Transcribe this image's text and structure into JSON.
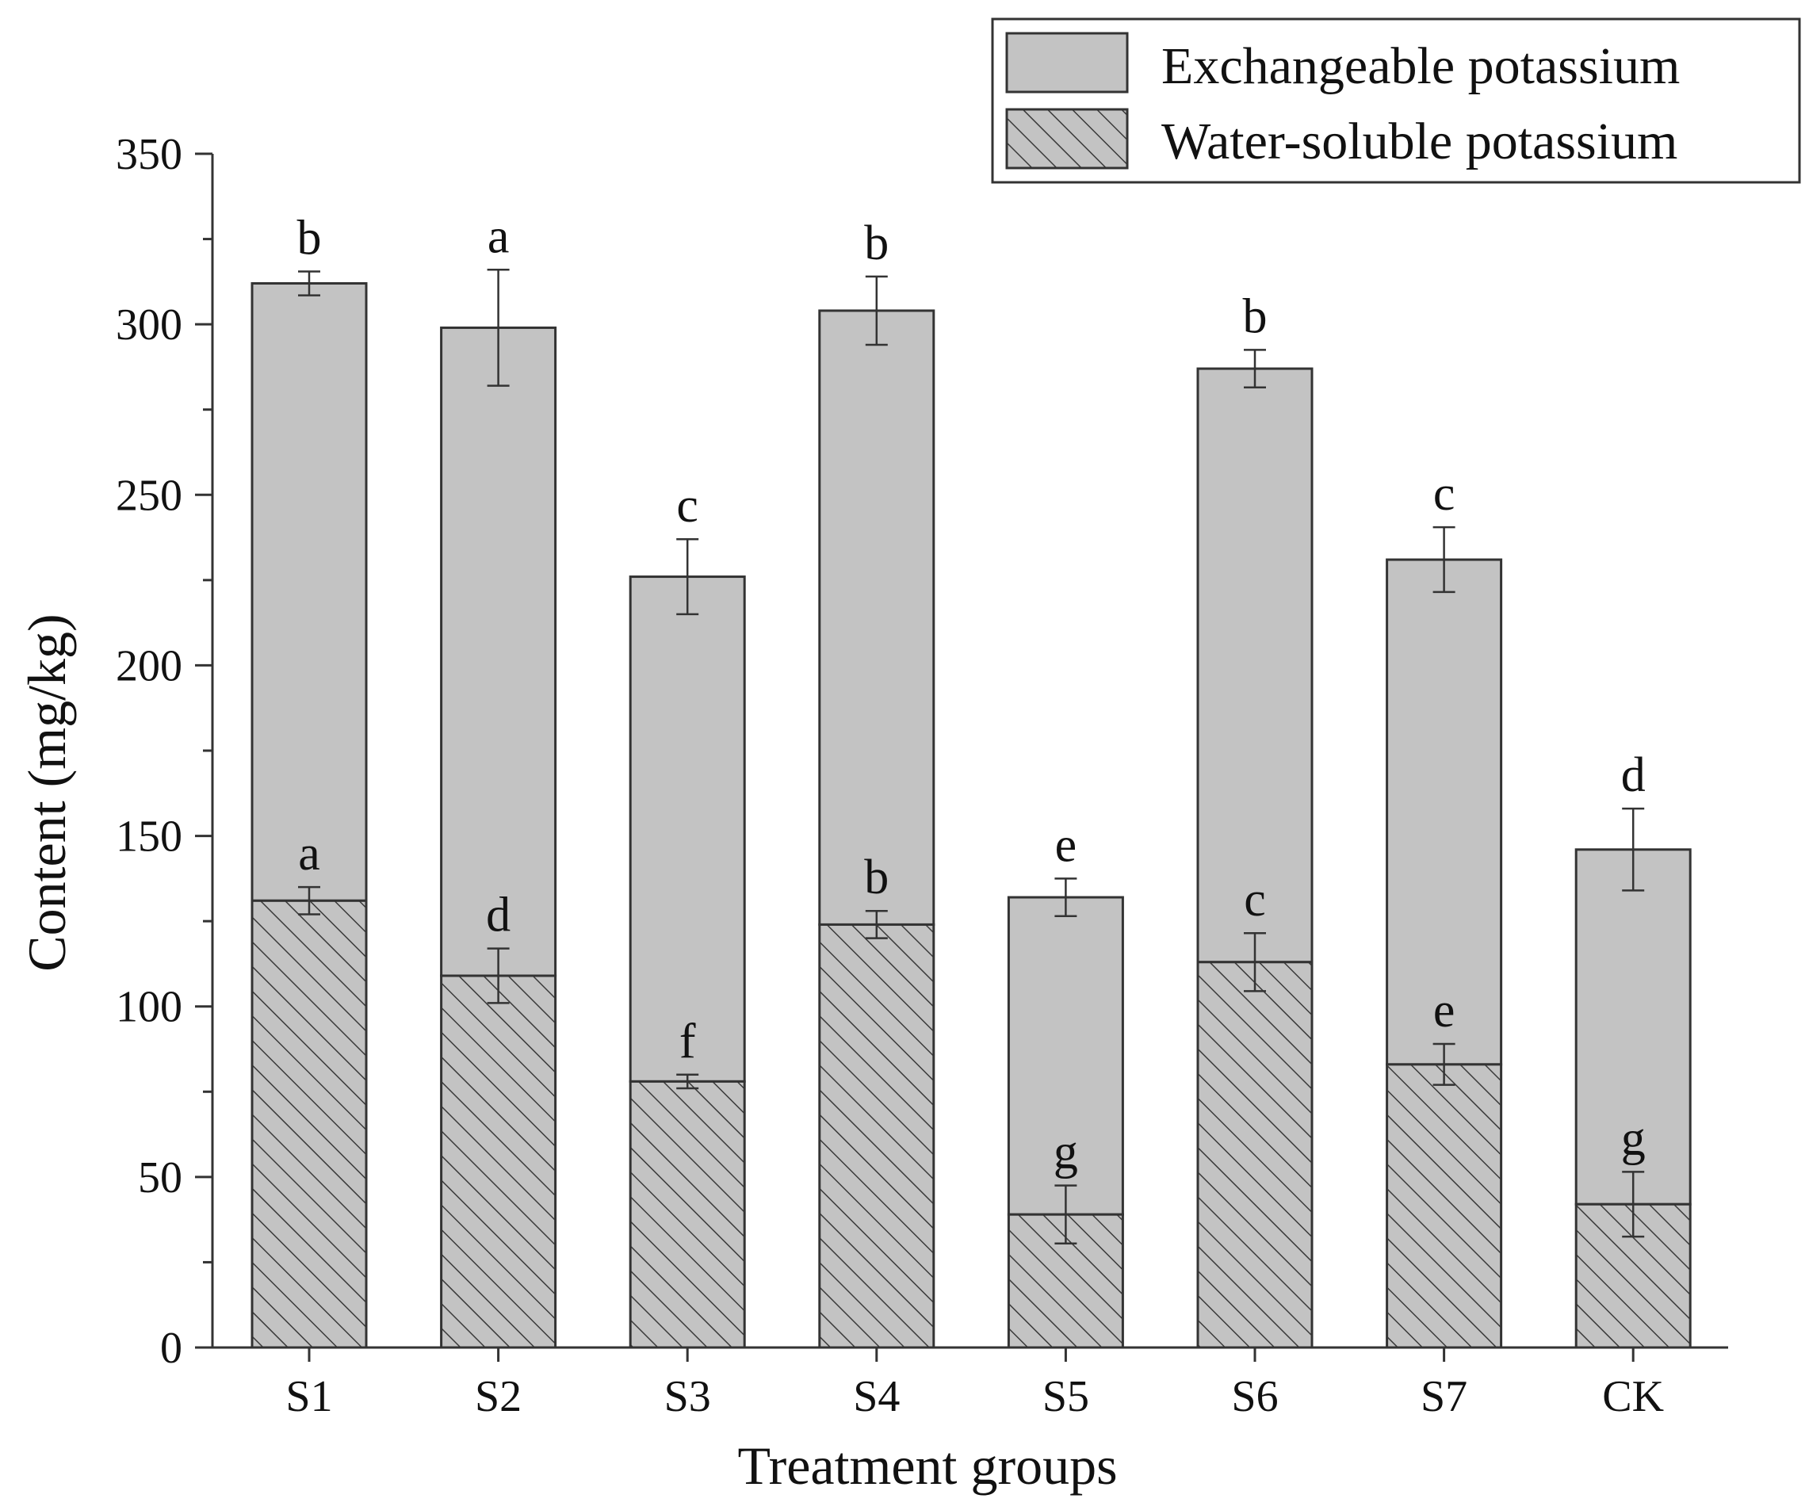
{
  "chart_data": {
    "type": "bar",
    "stacked": true,
    "title": "",
    "xlabel": "Treatment groups",
    "ylabel": "Content (mg/kg)",
    "ylim": [
      0,
      350
    ],
    "yticks": [
      0,
      50,
      100,
      150,
      200,
      250,
      300,
      350
    ],
    "grid": false,
    "legend_position": "top-right",
    "categories": [
      "S1",
      "S2",
      "S3",
      "S4",
      "S5",
      "S6",
      "S7",
      "CK"
    ],
    "series": [
      {
        "name": "Water-soluble potassium",
        "fill": "hatched",
        "totals": [
          131,
          109,
          78,
          124,
          39,
          113,
          83,
          42
        ],
        "errors": [
          4,
          8,
          2,
          4,
          8.5,
          8.5,
          6,
          9.5
        ],
        "labels": [
          "a",
          "d",
          "f",
          "b",
          "g",
          "c",
          "e",
          "g"
        ]
      },
      {
        "name": "Exchangeable potassium",
        "fill": "solid",
        "totals": [
          312,
          299,
          226,
          304,
          132,
          287,
          231,
          146
        ],
        "errors": [
          3.5,
          17,
          11,
          10,
          5.5,
          5.5,
          9.5,
          12
        ],
        "labels": [
          "b",
          "a",
          "c",
          "b",
          "e",
          "b",
          "c",
          "d"
        ]
      }
    ]
  },
  "colors": {
    "bar_fill": "#c3c3c3",
    "outline": "#333333",
    "hatch_line": "#3a3a3a",
    "text": "#111111"
  }
}
